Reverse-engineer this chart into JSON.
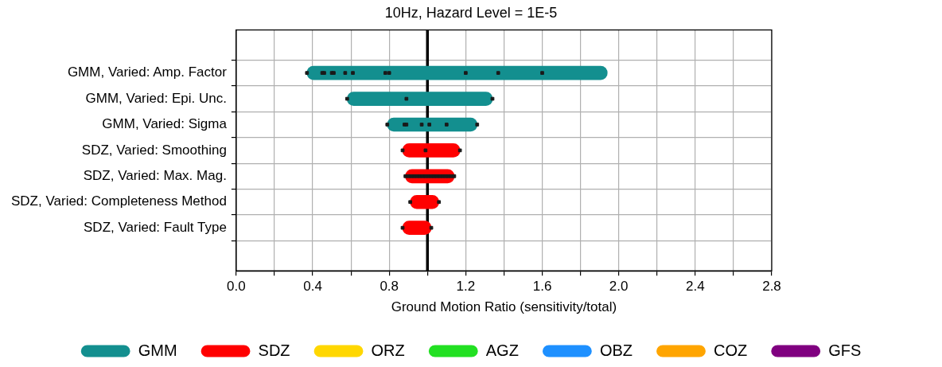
{
  "chart_data": {
    "type": "bar",
    "orientation": "horizontal",
    "title": "10Hz, Hazard Level = 1E-5",
    "xlabel": "Ground Motion Ratio (sensitivity/total)",
    "categories": [
      "GMM, Varied: Amp. Factor",
      "GMM, Varied: Epi. Unc.",
      "GMM, Varied: Sigma",
      "SDZ, Varied: Smoothing",
      "SDZ, Varied: Max. Mag.",
      "SDZ, Varied: Completeness Method",
      "SDZ, Varied: Fault Type"
    ],
    "xlim": [
      0,
      2.8
    ],
    "xticks": [
      {
        "value": 0,
        "label": "0.0"
      },
      {
        "value": 0.2,
        "label": null
      },
      0.4,
      {
        "value": 0.6,
        "label": null
      },
      0.8,
      {
        "value": 1.0,
        "label": null
      },
      1.2,
      {
        "value": 1.4,
        "label": null
      },
      1.6,
      {
        "value": 1.8,
        "label": null
      },
      {
        "value": 2.0,
        "label": "2.0"
      },
      {
        "value": 2.2,
        "label": null
      },
      2.4,
      {
        "value": 2.6,
        "label": null
      },
      2.8
    ],
    "grid": true,
    "legend": "bottom",
    "marker": "square",
    "ref_lines": [
      {
        "axis": "x",
        "value": 1.0,
        "color": "#000000"
      }
    ],
    "series": [
      {
        "name": "GMM",
        "color": "#138f8f",
        "base": [
          0.37,
          0.58,
          0.79,
          null,
          null,
          null,
          null
        ],
        "values": [
          1.57,
          0.76,
          0.47,
          null,
          null,
          null,
          null
        ]
      },
      {
        "name": "SDZ",
        "color": "#ff0000",
        "base": [
          null,
          null,
          null,
          0.87,
          0.885,
          0.91,
          0.87
        ],
        "values": [
          null,
          null,
          null,
          0.3,
          0.255,
          0.15,
          0.15
        ]
      },
      {
        "name": "ORZ",
        "color": "#ffd700",
        "base": [
          null,
          null,
          null,
          null,
          null,
          null,
          null
        ],
        "values": [
          null,
          null,
          null,
          null,
          null,
          null,
          null
        ]
      },
      {
        "name": "AGZ",
        "color": "#22e022",
        "base": [
          null,
          null,
          null,
          null,
          null,
          null,
          null
        ],
        "values": [
          null,
          null,
          null,
          null,
          null,
          null,
          null
        ]
      },
      {
        "name": "OBZ",
        "color": "#1e90ff",
        "base": [
          null,
          null,
          null,
          null,
          null,
          null,
          null
        ],
        "values": [
          null,
          null,
          null,
          null,
          null,
          null,
          null
        ]
      },
      {
        "name": "COZ",
        "color": "#ffa500",
        "base": [
          null,
          null,
          null,
          null,
          null,
          null,
          null
        ],
        "values": [
          null,
          null,
          null,
          null,
          null,
          null,
          null
        ]
      },
      {
        "name": "GFS",
        "color": "#800080",
        "base": [
          null,
          null,
          null,
          null,
          null,
          null,
          null
        ],
        "values": [
          null,
          null,
          null,
          null,
          null,
          null,
          null
        ]
      },
      {
        "type": "scatter",
        "color": "#1a1a1a",
        "x": [
          "GMM, Varied: Amp. Factor",
          "GMM, Varied: Amp. Factor",
          "GMM, Varied: Amp. Factor",
          "GMM, Varied: Amp. Factor",
          "GMM, Varied: Amp. Factor",
          "GMM, Varied: Amp. Factor",
          "GMM, Varied: Amp. Factor",
          "GMM, Varied: Amp. Factor",
          "GMM, Varied: Amp. Factor",
          "GMM, Varied: Amp. Factor",
          "GMM, Varied: Amp. Factor",
          "GMM, Varied: Amp. Factor",
          "GMM, Varied: Epi. Unc.",
          "GMM, Varied: Epi. Unc.",
          "GMM, Varied: Epi. Unc.",
          "GMM, Varied: Sigma",
          "GMM, Varied: Sigma",
          "GMM, Varied: Sigma",
          "GMM, Varied: Sigma",
          "GMM, Varied: Sigma",
          "GMM, Varied: Sigma",
          "GMM, Varied: Sigma"
        ],
        "values": [
          0.37,
          0.45,
          0.46,
          0.5,
          0.51,
          0.57,
          0.61,
          0.78,
          0.8,
          1.2,
          1.37,
          1.6,
          0.58,
          0.89,
          1.34,
          0.79,
          0.88,
          0.89,
          0.97,
          1.01,
          1.1,
          1.26
        ]
      },
      {
        "type": "scatter",
        "color": "#1a1a1a",
        "x": [
          "SDZ, Varied: Smoothing",
          "SDZ, Varied: Smoothing",
          "SDZ, Varied: Smoothing",
          "SDZ, Varied: Max. Mag.",
          "SDZ, Varied: Max. Mag.",
          "SDZ, Varied: Max. Mag.",
          "SDZ, Varied: Max. Mag.",
          "SDZ, Varied: Max. Mag.",
          "SDZ, Varied: Max. Mag.",
          "SDZ, Varied: Max. Mag.",
          "SDZ, Varied: Max. Mag.",
          "SDZ, Varied: Max. Mag.",
          "SDZ, Varied: Max. Mag.",
          "SDZ, Varied: Max. Mag.",
          "SDZ, Varied: Max. Mag.",
          "SDZ, Varied: Max. Mag.",
          "SDZ, Varied: Max. Mag.",
          "SDZ, Varied: Max. Mag.",
          "SDZ, Varied: Max. Mag.",
          "SDZ, Varied: Max. Mag.",
          "SDZ, Varied: Max. Mag.",
          "SDZ, Varied: Completeness Method",
          "SDZ, Varied: Completeness Method",
          "SDZ, Varied: Fault Type",
          "SDZ, Varied: Fault Type"
        ],
        "values": [
          0.87,
          0.99,
          1.17,
          0.885,
          0.9,
          0.915,
          0.93,
          0.945,
          0.96,
          0.975,
          0.99,
          1.005,
          1.02,
          1.035,
          1.05,
          1.065,
          1.08,
          1.095,
          1.11,
          1.125,
          1.14,
          0.91,
          1.06,
          0.87,
          1.02
        ]
      }
    ]
  }
}
